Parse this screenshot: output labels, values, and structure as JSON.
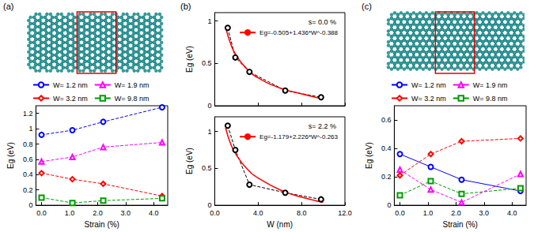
{
  "chart_data": [
    {
      "type": "line",
      "panel_label": "(a)",
      "x_label": "Strain (%)",
      "y_label": "Eg (eV)",
      "x": [
        0,
        1.1,
        2.2,
        4.3
      ],
      "series": [
        {
          "name": "W= 1.2 nm",
          "color": "#0000ff",
          "marker": "circle",
          "line_style": "dashed",
          "values": [
            0.92,
            0.98,
            1.09,
            1.28
          ]
        },
        {
          "name": "W= 1.9 nm",
          "color": "#ff00ff",
          "marker": "triangle",
          "line_style": "dashed",
          "values": [
            0.57,
            0.63,
            0.76,
            0.82
          ]
        },
        {
          "name": "W= 3.2 nm",
          "color": "#ff0000",
          "marker": "diamond",
          "line_style": "dashed",
          "values": [
            0.42,
            0.34,
            0.28,
            0.12
          ]
        },
        {
          "name": "W= 9.8 nm",
          "color": "#009900",
          "marker": "square",
          "line_style": "dashed",
          "values": [
            0.1,
            0.03,
            0.06,
            0.09
          ]
        }
      ],
      "xlim": [
        -0.2,
        4.5
      ],
      "xticks": [
        {
          "value": 0,
          "label": "0.0"
        },
        {
          "value": 1,
          "label": "1.0"
        },
        {
          "value": 2,
          "label": "2.0"
        },
        {
          "value": 3,
          "label": "3.0"
        },
        {
          "value": 4,
          "label": "4.0"
        }
      ],
      "ylim": [
        0,
        1.3
      ],
      "yticks": [
        0,
        0.2,
        0.4,
        0.6,
        0.8,
        1,
        1.2
      ],
      "grid": false,
      "legend": "top"
    },
    {
      "type": "line",
      "panel_label": "(b)",
      "title": "s= 0.0 %",
      "y_label": "Eg (eV)",
      "series": [
        {
          "color": "#000000",
          "marker": "circle",
          "line_style": "dashed",
          "x": [
            1.2,
            1.9,
            3.2,
            6.5,
            9.8
          ],
          "values": [
            0.92,
            0.57,
            0.4,
            0.18,
            0.1
          ]
        },
        {
          "name": "Eg=-0.505+1.436*W^-0.388",
          "color": "#ff0000",
          "marker": "none",
          "line_style": "solid",
          "x": [
            1,
            1.5,
            2,
            3,
            4,
            6,
            8,
            10
          ],
          "values": [
            0.93,
            0.72,
            0.59,
            0.43,
            0.33,
            0.21,
            0.14,
            0.08
          ]
        }
      ],
      "xlim": [
        0,
        12
      ],
      "xticks": [
        0,
        4,
        8,
        12
      ],
      "ylim": [
        0,
        1.1
      ],
      "yticks": [
        0,
        0.5,
        1
      ],
      "tick_labels": "y",
      "grid": false,
      "legend": "upper right"
    },
    {
      "type": "line",
      "title": "s= 2.2 %",
      "x_label": "W (nm)",
      "y_label": "Eg (eV)",
      "series": [
        {
          "color": "#000000",
          "marker": "circle",
          "line_style": "dashed",
          "x": [
            1.2,
            1.9,
            3.2,
            6.5,
            9.8
          ],
          "values": [
            1.08,
            0.75,
            0.28,
            0.17,
            0.08
          ]
        },
        {
          "name": "Eg=-1.179+2.226*W^-0.263",
          "color": "#ff0000",
          "marker": "none",
          "line_style": "solid",
          "x": [
            1,
            1.5,
            2,
            3,
            4,
            6,
            8,
            10
          ],
          "values": [
            1.05,
            0.82,
            0.68,
            0.49,
            0.37,
            0.21,
            0.11,
            0.04
          ]
        }
      ],
      "xlim": [
        0,
        12
      ],
      "xticks": [
        {
          "value": 0,
          "label": "0.0"
        },
        {
          "value": 4,
          "label": "4.0"
        },
        {
          "value": 8,
          "label": "8.0"
        },
        {
          "value": 12,
          "label": "12.0"
        }
      ],
      "ylim": [
        0,
        1.2
      ],
      "yticks": [
        0,
        0.5,
        1
      ],
      "grid": false,
      "legend": "upper right"
    },
    {
      "type": "line",
      "panel_label": "(c)",
      "x_label": "Strain (%)",
      "y_label": "Eg (eV)",
      "x": [
        0,
        1.1,
        2.2,
        4.3
      ],
      "series": [
        {
          "name": "W= 1.2 nm",
          "color": "#0000ff",
          "marker": "circle",
          "line_style": "solid",
          "values": [
            0.36,
            0.27,
            0.18,
            0.1
          ]
        },
        {
          "name": "W= 1.9 nm",
          "color": "#ff00ff",
          "marker": "triangle",
          "line_style": "dashed",
          "values": [
            0.25,
            0.11,
            0.02,
            0.22
          ]
        },
        {
          "name": "W= 3.2 nm",
          "color": "#ff0000",
          "marker": "diamond",
          "line_style": "dashed",
          "values": [
            0.21,
            0.36,
            0.45,
            0.47
          ]
        },
        {
          "name": "W= 9.8 nm",
          "color": "#009900",
          "marker": "square",
          "line_style": "dashed",
          "values": [
            0.07,
            0.17,
            0.08,
            0.12
          ]
        }
      ],
      "xlim": [
        -0.2,
        4.5
      ],
      "xticks": [
        {
          "value": 0,
          "label": "0.0"
        },
        {
          "value": 1,
          "label": "1.0"
        },
        {
          "value": 2,
          "label": "2.0"
        },
        {
          "value": 3,
          "label": "3.0"
        },
        {
          "value": 4,
          "label": "4.0"
        }
      ],
      "ylim": [
        0,
        0.7
      ],
      "yticks": [
        0,
        0.2,
        0.4,
        0.6
      ],
      "grid": false,
      "legend": "top"
    }
  ]
}
